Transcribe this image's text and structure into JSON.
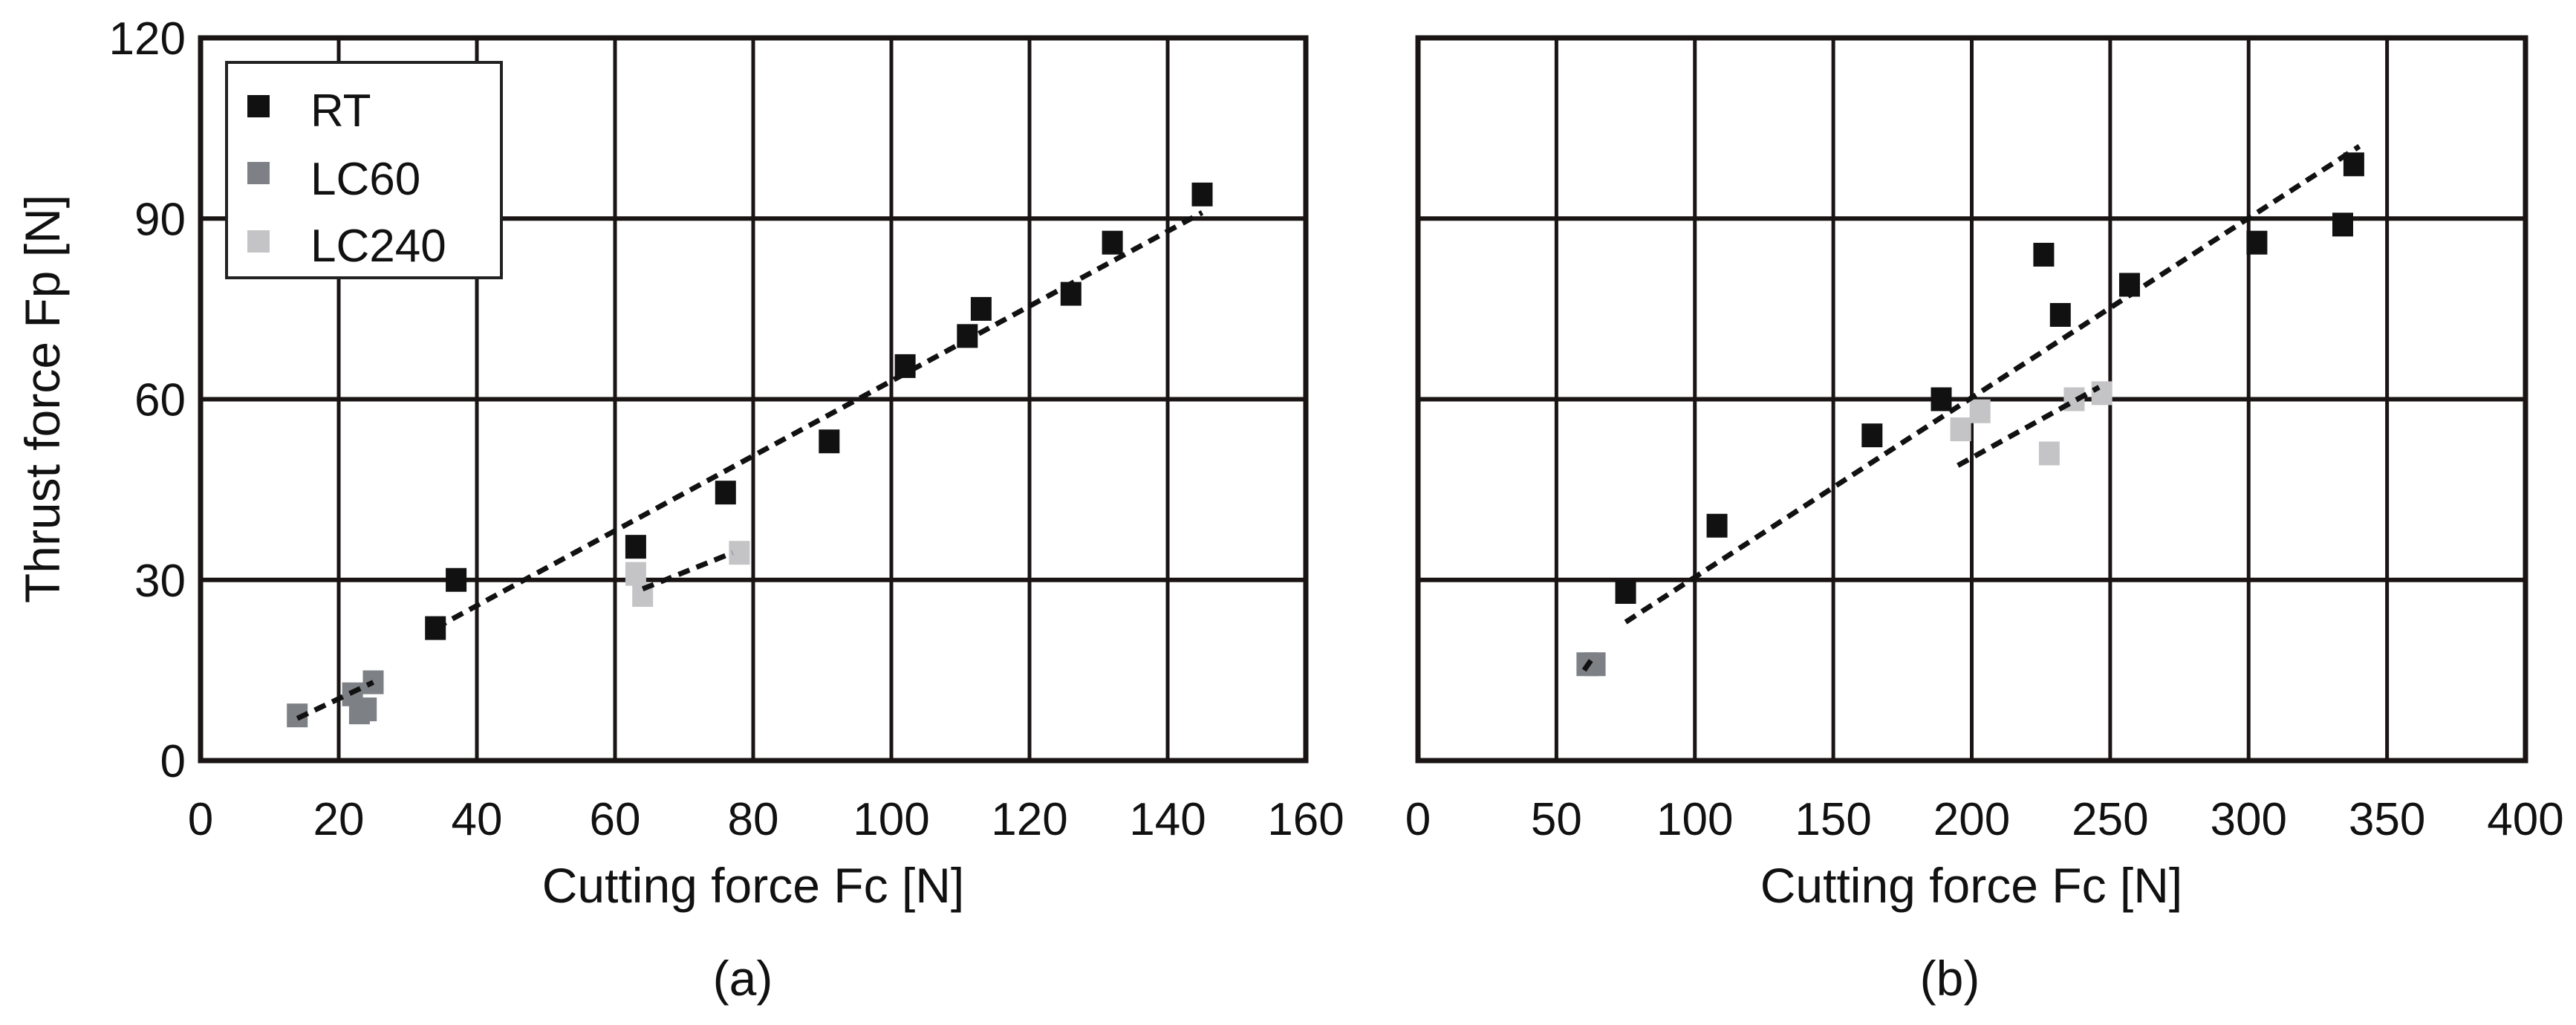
{
  "figure": {
    "panels": [
      {
        "id": "a",
        "caption": "(a)",
        "xlabel": "Cutting force Fc [N]",
        "ylabel": "Thrust force Fp [N]"
      },
      {
        "id": "b",
        "caption": "(b)",
        "xlabel": "Cutting force Fc [N]",
        "ylabel": ""
      }
    ],
    "legend": [
      {
        "label": "RT",
        "color": "#111111"
      },
      {
        "label": "LC60",
        "color": "#7d8085"
      },
      {
        "label": "LC240",
        "color": "#c4c4c6"
      }
    ]
  },
  "chart_data": [
    {
      "type": "scatter",
      "title": "(a)",
      "xlabel": "Cutting force Fc [N]",
      "ylabel": "Thrust force Fp [N]",
      "xlim": [
        0,
        160
      ],
      "ylim": [
        0,
        120
      ],
      "xticks": [
        0,
        20,
        40,
        60,
        80,
        100,
        120,
        140,
        160
      ],
      "yticks": [
        0,
        30,
        60,
        90,
        120
      ],
      "grid": true,
      "legend_position": "upper left",
      "series": [
        {
          "name": "RT",
          "color": "#111111",
          "points": [
            [
              34,
              22
            ],
            [
              37,
              30
            ],
            [
              63,
              35.5
            ],
            [
              76,
              44.5
            ],
            [
              91,
              53
            ],
            [
              102,
              65.5
            ],
            [
              111,
              70.5
            ],
            [
              113,
              75
            ],
            [
              126,
              77.5
            ],
            [
              132,
              86
            ],
            [
              145,
              94
            ]
          ],
          "trend": [
            [
              34,
              22
            ],
            [
              145,
              91
            ]
          ]
        },
        {
          "name": "LC60",
          "color": "#7d8085",
          "points": [
            [
              14,
              7.5
            ],
            [
              22,
              11
            ],
            [
              23,
              8
            ],
            [
              24,
              8.5
            ],
            [
              25,
              13
            ]
          ],
          "trend": [
            [
              14,
              7
            ],
            [
              25,
              13
            ]
          ]
        },
        {
          "name": "LC240",
          "color": "#c4c4c6",
          "points": [
            [
              63,
              31
            ],
            [
              64,
              27.5
            ],
            [
              78,
              34.5
            ]
          ],
          "trend": [
            [
              64,
              28.5
            ],
            [
              77,
              34.5
            ]
          ]
        }
      ]
    },
    {
      "type": "scatter",
      "title": "(b)",
      "xlabel": "Cutting force Fc [N]",
      "ylabel": "",
      "xlim": [
        0,
        400
      ],
      "ylim": [
        0,
        120
      ],
      "xticks": [
        0,
        50,
        100,
        150,
        200,
        250,
        300,
        350,
        400
      ],
      "yticks": [
        0,
        30,
        60,
        90,
        120
      ],
      "grid": true,
      "series": [
        {
          "name": "RT",
          "color": "#111111",
          "points": [
            [
              75,
              28
            ],
            [
              108,
              39
            ],
            [
              164,
              54
            ],
            [
              189,
              60
            ],
            [
              226,
              84
            ],
            [
              232,
              74
            ],
            [
              257,
              79
            ],
            [
              303,
              86
            ],
            [
              334,
              89
            ],
            [
              338,
              99
            ]
          ],
          "trend": [
            [
              75,
              23
            ],
            [
              340,
              102
            ]
          ]
        },
        {
          "name": "LC60",
          "color": "#7d8085",
          "points": [
            [
              61,
              16
            ],
            [
              64,
              16
            ]
          ],
          "trend": [
            [
              60,
              15
            ],
            [
              63,
              17
            ]
          ]
        },
        {
          "name": "LC240",
          "color": "#c4c4c6",
          "points": [
            [
              196,
              55
            ],
            [
              203,
              58
            ],
            [
              228,
              51
            ],
            [
              237,
              60
            ],
            [
              247,
              61
            ]
          ],
          "trend": [
            [
              195,
              49
            ],
            [
              246,
              62
            ]
          ]
        }
      ]
    }
  ]
}
